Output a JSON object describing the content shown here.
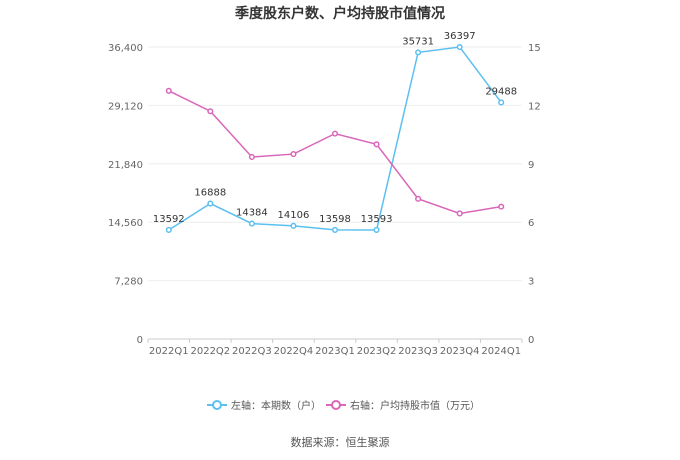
{
  "title": "季度股东户数、户均持股市值情况",
  "source": "数据来源：恒生聚源",
  "chart_data": {
    "type": "line",
    "categories": [
      "2022Q1",
      "2022Q2",
      "2022Q3",
      "2022Q4",
      "2023Q1",
      "2023Q2",
      "2023Q3",
      "2023Q4",
      "2024Q1"
    ],
    "left_axis": {
      "ticks": [
        "0",
        "7,280",
        "14,560",
        "21,840",
        "29,120",
        "36,400"
      ],
      "ylim": [
        0,
        36400
      ]
    },
    "right_axis": {
      "ticks": [
        "0",
        "3",
        "6",
        "9",
        "12",
        "15"
      ],
      "ylim": [
        0,
        15
      ]
    },
    "series": [
      {
        "name": "左轴：本期数（户）",
        "axis": "left",
        "color": "#5bc0f0",
        "values": [
          13592,
          16888,
          14384,
          14106,
          13598,
          13593,
          35731,
          36397,
          29488
        ],
        "labels": [
          "13592",
          "16888",
          "14384",
          "14106",
          "13598",
          "13593",
          "35731",
          "36397",
          "29488"
        ]
      },
      {
        "name": "右轴：户均持股市值（万元）",
        "axis": "right",
        "color": "#d966b8",
        "values": [
          12.75,
          11.7,
          9.35,
          9.5,
          10.55,
          10.0,
          7.2,
          6.45,
          6.8
        ]
      }
    ],
    "legend_position": "bottom",
    "grid": true
  }
}
